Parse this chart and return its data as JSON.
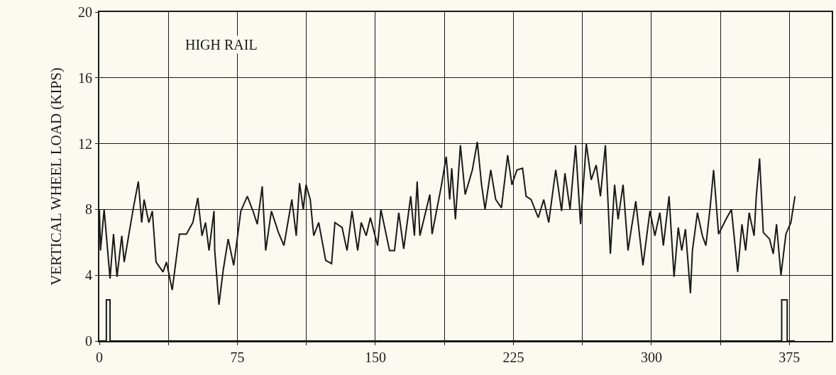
{
  "chart_data": {
    "type": "line",
    "ylabel": "VERTICAL WHEEL LOAD (KIPS)",
    "annotations": [
      "HIGH RAIL"
    ],
    "series": [
      {
        "color": "#1a1a1a",
        "x": [
          0,
          0.6,
          2.6,
          5.8,
          7.7,
          9.6,
          12.2,
          13.5,
          18.5,
          21.2,
          23,
          24.3,
          26.9,
          28.8,
          30.8,
          34.6,
          36.5,
          39.6,
          43.5,
          47.3,
          50.8,
          53.5,
          55.8,
          57.7,
          59.6,
          62.3,
          62.7,
          65,
          67.3,
          70,
          73,
          76.9,
          80.4,
          83.5,
          85.8,
          88.5,
          90.4,
          93.5,
          97.3,
          100.3,
          104.6,
          107,
          108.8,
          110.8,
          112.3,
          114.6,
          116.5,
          119.2,
          123,
          126.2,
          128,
          131.9,
          134.6,
          137.3,
          140.4,
          142.3,
          145,
          147.3,
          151.2,
          153,
          157.7,
          160.4,
          162.7,
          165.4,
          169.2,
          171.2,
          172.7,
          174.2,
          179.6,
          180.8,
          185.8,
          188.5,
          190.4,
          191.5,
          193.5,
          196.2,
          198.8,
          202.7,
          205.4,
          207.7,
          209.6,
          212.7,
          215.4,
          218.5,
          221.9,
          224.2,
          226.9,
          230,
          231.9,
          234.6,
          238.5,
          241.5,
          244.2,
          248,
          251.2,
          253,
          255.8,
          258.8,
          261.5,
          264.6,
          267.3,
          270,
          272.3,
          275,
          277.7,
          280,
          281.9,
          284.6,
          287.3,
          289.2,
          291.5,
          295.4,
          299.2,
          301.9,
          304.6,
          306.5,
          309.6,
          312.3,
          314.6,
          316.5,
          318.5,
          321.2,
          322.3,
          325,
          327.7,
          329.6,
          332,
          333.8,
          336.5,
          341,
          343.5,
          346.9,
          349.2,
          351.2,
          353.1,
          355.8,
          357,
          358.8,
          360.8,
          364.2,
          366.2,
          368,
          370.4,
          373.1,
          375.8,
          378
        ],
        "values": [
          8.0,
          5.5,
          8.0,
          3.8,
          6.5,
          3.9,
          6.4,
          4.8,
          8.1,
          9.7,
          7.2,
          8.6,
          7.2,
          7.9,
          4.8,
          4.2,
          4.8,
          3.1,
          6.5,
          6.5,
          7.2,
          8.7,
          6.4,
          7.2,
          5.5,
          7.9,
          5.5,
          2.2,
          4.3,
          6.2,
          4.6,
          7.9,
          8.8,
          7.9,
          7.1,
          9.4,
          5.5,
          7.9,
          6.6,
          5.8,
          8.6,
          6.4,
          9.6,
          8.0,
          9.5,
          8.6,
          6.4,
          7.2,
          4.9,
          4.7,
          7.2,
          6.9,
          5.5,
          7.9,
          5.5,
          7.2,
          6.4,
          7.5,
          5.8,
          8.0,
          5.5,
          5.5,
          7.8,
          5.6,
          8.8,
          6.4,
          9.7,
          6.4,
          8.9,
          6.5,
          9.4,
          11.2,
          8.6,
          10.5,
          7.4,
          11.9,
          8.9,
          10.4,
          12.1,
          9.5,
          8.0,
          10.4,
          8.6,
          8.1,
          11.3,
          9.5,
          10.4,
          10.5,
          8.8,
          8.6,
          7.5,
          8.6,
          7.2,
          10.4,
          7.9,
          10.2,
          8.0,
          11.9,
          7.1,
          12.0,
          9.8,
          10.7,
          8.8,
          11.9,
          5.3,
          9.5,
          7.4,
          9.5,
          5.5,
          6.9,
          8.5,
          4.6,
          7.9,
          6.4,
          7.8,
          5.8,
          8.8,
          3.9,
          6.9,
          5.5,
          6.8,
          2.9,
          5.5,
          7.8,
          6.4,
          5.8,
          8.2,
          10.4,
          6.5,
          7.5,
          8.0,
          4.2,
          7.1,
          5.5,
          7.8,
          6.4,
          8.8,
          11.1,
          6.6,
          6.2,
          5.3,
          7.1,
          4.0,
          6.5,
          7.2,
          8.8
        ]
      },
      {
        "color": "#1a1a1a",
        "x": [
          0,
          3.8,
          3.8,
          5.8,
          5.8,
          370.8,
          370.8,
          373.8,
          373.8,
          378
        ],
        "values": [
          0,
          0,
          2.5,
          2.5,
          0,
          0,
          2.5,
          2.5,
          0,
          0
        ]
      }
    ],
    "xlim": [
      0,
      398
    ],
    "xticks": [
      0,
      {
        "value": 37.5,
        "label": null
      },
      75,
      {
        "value": 112.5,
        "label": null
      },
      150,
      {
        "value": 187.5,
        "label": null
      },
      225,
      {
        "value": 262.5,
        "label": null
      },
      300,
      {
        "value": 337.5,
        "label": null
      },
      375
    ],
    "ylim": [
      0,
      20
    ],
    "yticks": [
      0,
      4,
      8,
      12,
      16,
      20
    ],
    "grid": true,
    "line_style": "solid",
    "marker": "none"
  }
}
